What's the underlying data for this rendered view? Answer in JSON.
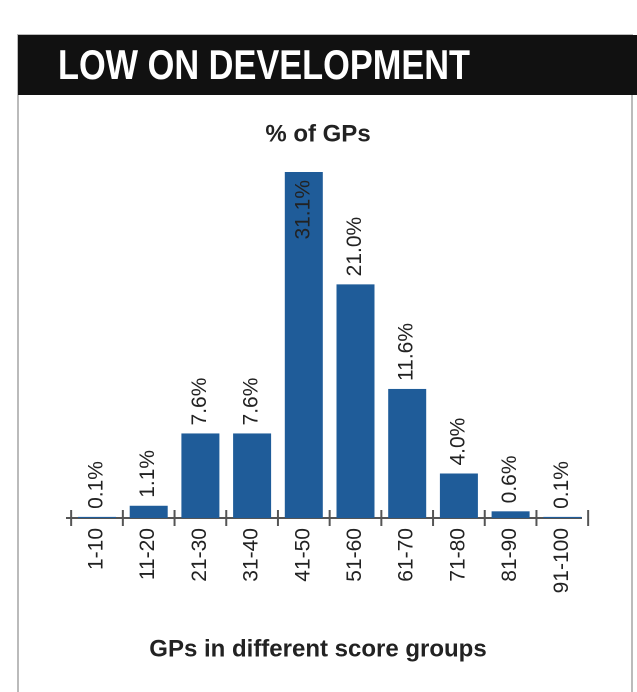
{
  "chart_data": {
    "type": "bar",
    "title": "LOW ON DEVELOPMENT",
    "subtitle": "% of GPs",
    "x_label": "GPs in different score groups",
    "categories": [
      "1-10",
      "11-20",
      "21-30",
      "31-40",
      "41-50",
      "51-60",
      "61-70",
      "71-80",
      "81-90",
      "91-100"
    ],
    "values": [
      0.1,
      1.1,
      7.6,
      7.6,
      31.1,
      21.0,
      11.6,
      4.0,
      0.6,
      0.1
    ],
    "value_labels": [
      "0.1%",
      "1.1%",
      "7.6%",
      "7.6%",
      "31.1%",
      "21.0%",
      "11.6%",
      "4.0%",
      "0.6%",
      "0.1%"
    ],
    "color": "#1f5c99"
  }
}
